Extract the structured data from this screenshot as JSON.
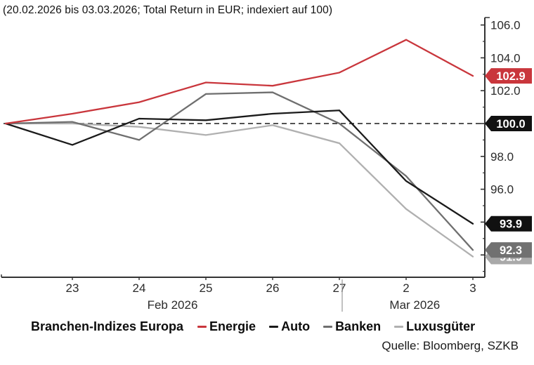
{
  "title": "(20.02.2026 bis 03.03.2026; Total Return in EUR; indexiert auf 100)",
  "source": "Quelle: Bloomberg, SZKB",
  "legend": {
    "title": "Branchen-Indizes Europa"
  },
  "chart_data": {
    "type": "line",
    "title": "(20.02.2026 bis 03.03.2026; Total Return in EUR; indexiert auf 100)",
    "x_dates": [
      "20.02.2026",
      "23.02.2026",
      "24.02.2026",
      "25.02.2026",
      "26.02.2026",
      "27.02.2026",
      "02.03.2026",
      "03.03.2026"
    ],
    "x_tick_labels": [
      "",
      "23",
      "24",
      "25",
      "26",
      "27",
      "2",
      "3"
    ],
    "month_labels": [
      {
        "label": "Feb 2026",
        "index_center": 2.5
      },
      {
        "label": "Mar 2026",
        "index_center": 6.13
      }
    ],
    "series": [
      {
        "name": "Energie",
        "color": "#c9363c",
        "tag_color": "#c9363c",
        "values": [
          100.0,
          100.6,
          101.3,
          102.5,
          102.3,
          103.1,
          105.1,
          102.9
        ],
        "end_label": "102.9"
      },
      {
        "name": "Auto",
        "color": "#1a1a1a",
        "tag_color": "#111111",
        "values": [
          100.0,
          98.7,
          100.3,
          100.2,
          100.6,
          100.8,
          96.5,
          93.9
        ],
        "end_label": "93.9"
      },
      {
        "name": "Banken",
        "color": "#6f6f6f",
        "tag_color": "#717171",
        "values": [
          100.0,
          100.1,
          99.0,
          101.8,
          101.9,
          100.0,
          96.8,
          92.3
        ],
        "end_label": "92.3"
      },
      {
        "name": "Luxusgüter",
        "color": "#b0b0b0",
        "tag_color": "#a9a9a9",
        "values": [
          100.0,
          100.0,
          99.8,
          99.3,
          99.9,
          98.8,
          94.8,
          91.9
        ],
        "end_label": "91.9"
      }
    ],
    "baseline": {
      "value": 100.0,
      "label": "100.0",
      "color": "#1a1a1a",
      "style": "dashed",
      "tag_color": "#111111"
    },
    "ylim": [
      90.6,
      106.4
    ],
    "y_major_ticks": [
      92,
      94,
      96,
      98,
      100,
      102,
      104,
      106
    ],
    "y_minor_ticks": [
      91,
      93,
      95,
      97,
      99,
      101,
      103,
      105
    ],
    "y_tick_decimals": 1,
    "axis_side": "right",
    "grid": false,
    "legend_position": "bottom"
  }
}
